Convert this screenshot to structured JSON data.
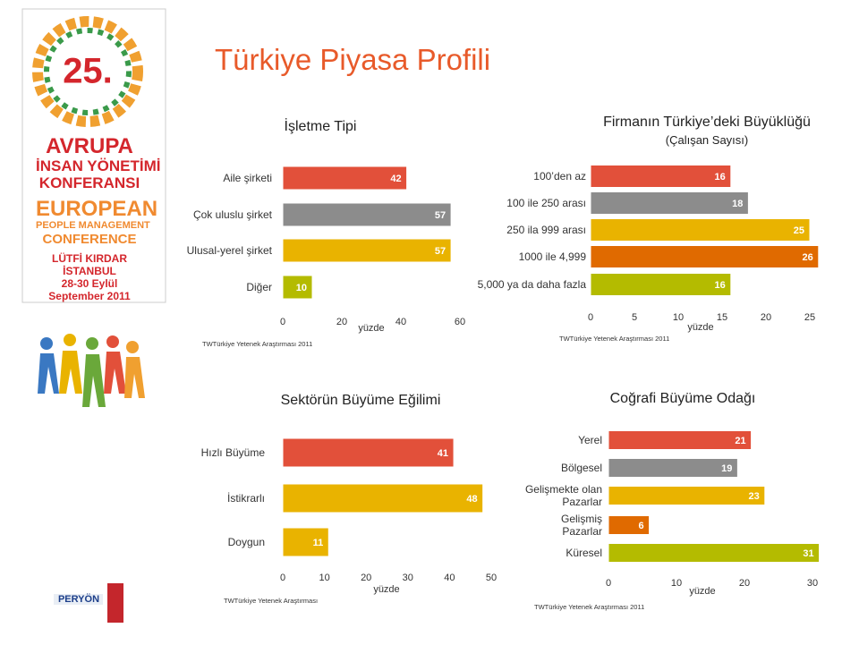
{
  "title": "Türkiye Piyasa Profili",
  "sidebar": {
    "number": "25.",
    "lines": [
      "AVRUPA",
      "İNSAN YÖNETİMİ",
      "KONFERANSI",
      "EUROPEAN",
      "PEOPLE MANAGEMENT",
      "CONFERENCE",
      "LÜTFİ KIRDAR",
      "İSTANBUL",
      "28-30 Eylül",
      "September 2011"
    ],
    "footer": "PERYÖN"
  },
  "chart_data": [
    {
      "type": "bar",
      "orientation": "horizontal",
      "title": "İşletme Tipi",
      "categories": [
        "Aile şirketi",
        "Çok uluslu şirket",
        "Ulusal-yerel şirket",
        "Diğer"
      ],
      "values": [
        42,
        57,
        57,
        10
      ],
      "colors": [
        "#e2503a",
        "#8c8c8c",
        "#e9b300",
        "#b4bb00"
      ],
      "xlim": [
        0,
        60
      ],
      "xticks": [
        0,
        20,
        40,
        60
      ],
      "xlabel": "yüzde",
      "source": "TWTürkiye Yetenek Araştırması 2011"
    },
    {
      "type": "bar",
      "orientation": "horizontal",
      "title": "Firmanın Türkiye’deki Büyüklüğü",
      "subtitle": "(Çalışan Sayısı)",
      "categories": [
        "100’den az",
        "100 ile 250 arası",
        "250 ila 999 arası",
        "1000 ile 4,999",
        "5,000 ya da daha fazla"
      ],
      "values": [
        16,
        18,
        25,
        26,
        16
      ],
      "colors": [
        "#e2503a",
        "#8c8c8c",
        "#e9b300",
        "#e06a00",
        "#b4bb00"
      ],
      "xlim": [
        0,
        25
      ],
      "xticks": [
        0,
        5,
        10,
        15,
        20,
        25
      ],
      "xlabel": "yüzde",
      "source": "TWTürkiye Yetenek Araştırması 2011"
    },
    {
      "type": "bar",
      "orientation": "horizontal",
      "title": "Sektörün Büyüme Eğilimi",
      "categories": [
        "Hızlı Büyüme",
        "İstikrarlı",
        "Doygun"
      ],
      "values": [
        41,
        48,
        11
      ],
      "colors": [
        "#e2503a",
        "#e9b300",
        "#e9b300"
      ],
      "xlim": [
        0,
        50
      ],
      "xticks": [
        0,
        10,
        20,
        30,
        40,
        50
      ],
      "xlabel": "yüzde",
      "source": "TWTürkiye Yetenek Araştırması"
    },
    {
      "type": "bar",
      "orientation": "horizontal",
      "title": "Coğrafi Büyüme Odağı",
      "categories": [
        "Yerel",
        "Bölgesel",
        "Gelişmekte olan\nPazarlar",
        "Gelişmiş\nPazarlar",
        "Küresel"
      ],
      "values": [
        21,
        19,
        23,
        6,
        31
      ],
      "colors": [
        "#e2503a",
        "#8c8c8c",
        "#e9b300",
        "#e06a00",
        "#b4bb00"
      ],
      "xlim": [
        0,
        30
      ],
      "xticks": [
        0,
        10,
        20,
        30
      ],
      "xlabel": "yüzde",
      "source": "TWTürkiye Yetenek Araştırması 2011"
    }
  ]
}
